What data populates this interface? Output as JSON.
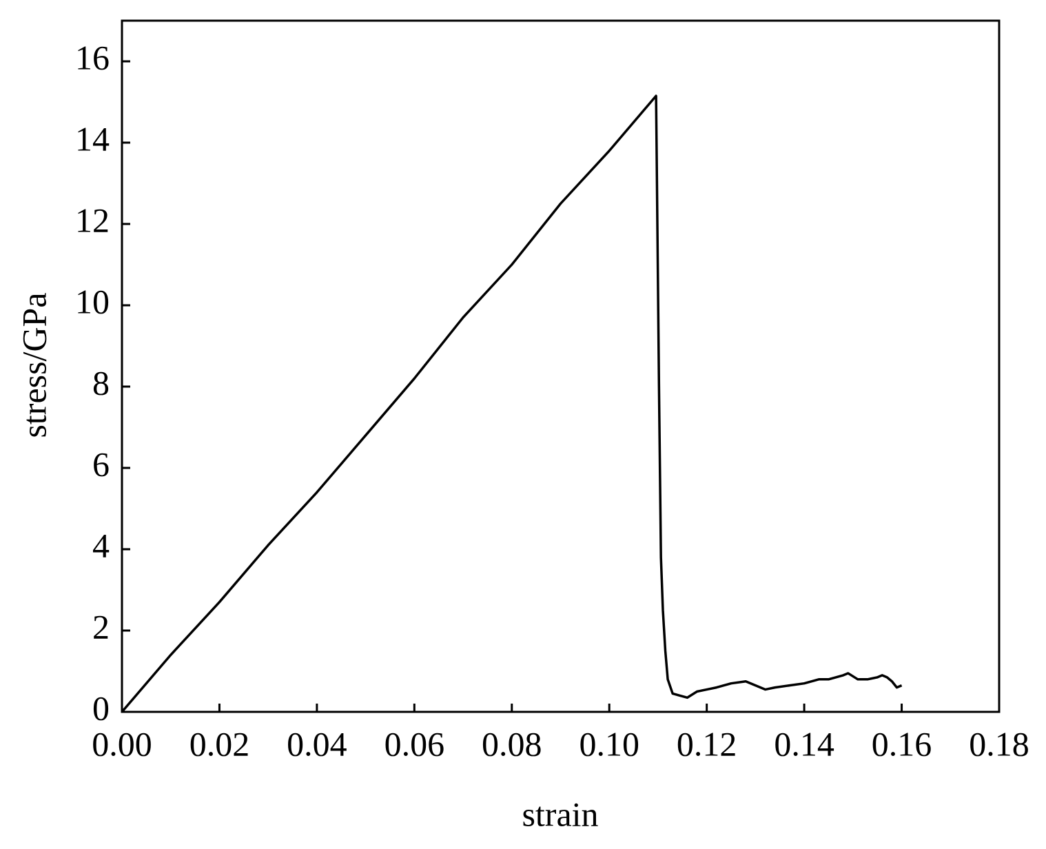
{
  "chart_data": {
    "type": "line",
    "x_label": "strain",
    "y_label": "stress/GPa",
    "series": [
      {
        "name": "stress",
        "color": "#000000",
        "x": [
          0,
          0.01,
          0.02,
          0.03,
          0.04,
          0.05,
          0.06,
          0.07,
          0.08,
          0.09,
          0.1,
          0.1096,
          0.1097,
          0.1102,
          0.1106,
          0.111,
          0.1115,
          0.112,
          0.113,
          0.1145,
          0.116,
          0.118,
          0.12,
          0.122,
          0.125,
          0.128,
          0.13,
          0.132,
          0.134,
          0.137,
          0.14,
          0.143,
          0.145,
          0.148,
          0.149,
          0.151,
          0.153,
          0.155,
          0.156,
          0.157,
          0.158,
          0.159,
          0.16
        ],
        "values": [
          0,
          1.4,
          2.7,
          4.1,
          5.4,
          6.8,
          8.2,
          9.7,
          11.0,
          12.5,
          13.8,
          15.15,
          14.0,
          8.0,
          3.8,
          2.5,
          1.5,
          0.8,
          0.45,
          0.4,
          0.35,
          0.5,
          0.55,
          0.6,
          0.7,
          0.75,
          0.65,
          0.55,
          0.6,
          0.65,
          0.7,
          0.8,
          0.8,
          0.9,
          0.95,
          0.8,
          0.8,
          0.85,
          0.9,
          0.85,
          0.75,
          0.6,
          0.65
        ]
      }
    ],
    "xlim": [
      0,
      0.18
    ],
    "xticks": [
      {
        "value": 0,
        "label": "0.00"
      },
      0.02,
      0.04,
      0.06,
      0.08,
      {
        "value": 0.1,
        "label": "0.10"
      },
      0.12,
      0.14,
      0.16,
      0.18
    ],
    "ylim": [
      0,
      17
    ],
    "yticks": [
      0,
      2,
      4,
      6,
      8,
      10,
      12,
      14,
      16
    ],
    "grid": false
  }
}
